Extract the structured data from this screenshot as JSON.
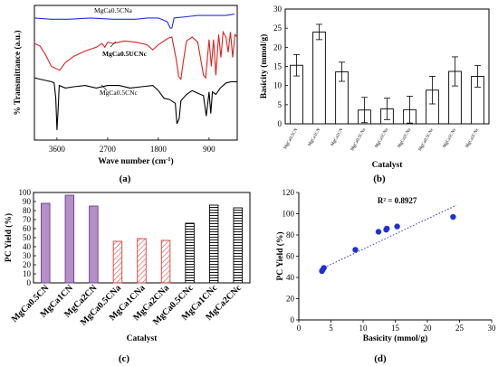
{
  "chart_data": [
    {
      "type": "line",
      "panel": "(a)",
      "xlabel": "Wave number (cm",
      "xlabel_sup": "-1",
      "xlabel_end": ")",
      "ylabel": "% Transmittance (a.u.)",
      "xlim": [
        4000,
        400
      ],
      "xticks": [
        3600,
        2700,
        1800,
        900
      ],
      "series": [
        {
          "name": "MgCa0.5CNa",
          "color": "#2233dd",
          "points": [
            [
              4000,
              93
            ],
            [
              3700,
              92
            ],
            [
              3400,
              92
            ],
            [
              3000,
              93
            ],
            [
              2600,
              92
            ],
            [
              2300,
              92
            ],
            [
              2200,
              92
            ],
            [
              2000,
              93
            ],
            [
              1900,
              93
            ],
            [
              1800,
              93
            ],
            [
              1750,
              92
            ],
            [
              1640,
              90
            ],
            [
              1590,
              85
            ],
            [
              1560,
              85
            ],
            [
              1520,
              93
            ],
            [
              1300,
              94
            ],
            [
              1100,
              95
            ],
            [
              900,
              95
            ],
            [
              600,
              95
            ],
            [
              450,
              96
            ]
          ]
        },
        {
          "name": "MgCa0.5UCNc",
          "color": "#dd2222",
          "points": [
            [
              4000,
              73
            ],
            [
              3900,
              71
            ],
            [
              3800,
              64
            ],
            [
              3700,
              55
            ],
            [
              3550,
              52
            ],
            [
              3450,
              58
            ],
            [
              3300,
              63
            ],
            [
              3100,
              67
            ],
            [
              2900,
              70
            ],
            [
              2800,
              73
            ],
            [
              2750,
              70
            ],
            [
              2700,
              74
            ],
            [
              2600,
              73
            ],
            [
              2500,
              74
            ],
            [
              2400,
              75
            ],
            [
              2200,
              74
            ],
            [
              2000,
              72
            ],
            [
              1900,
              68
            ],
            [
              1800,
              72
            ],
            [
              1700,
              75
            ],
            [
              1630,
              77
            ],
            [
              1560,
              78
            ],
            [
              1480,
              60
            ],
            [
              1440,
              47
            ],
            [
              1400,
              45
            ],
            [
              1360,
              58
            ],
            [
              1300,
              75
            ],
            [
              1200,
              78
            ],
            [
              1100,
              74
            ],
            [
              1000,
              48
            ],
            [
              960,
              46
            ],
            [
              900,
              76
            ],
            [
              860,
              55
            ],
            [
              820,
              76
            ],
            [
              780,
              48
            ],
            [
              730,
              80
            ],
            [
              690,
              62
            ],
            [
              650,
              82
            ],
            [
              600,
              78
            ],
            [
              560,
              66
            ],
            [
              520,
              82
            ],
            [
              480,
              62
            ],
            [
              440,
              80
            ],
            [
              400,
              78
            ]
          ]
        },
        {
          "name": "MgCa0.5CNc",
          "color": "#000000",
          "points": [
            [
              4000,
              46
            ],
            [
              3900,
              45
            ],
            [
              3800,
              44
            ],
            [
              3700,
              43
            ],
            [
              3650,
              42
            ],
            [
              3620,
              30
            ],
            [
              3600,
              5
            ],
            [
              3580,
              20
            ],
            [
              3560,
              40
            ],
            [
              3450,
              38
            ],
            [
              3300,
              39
            ],
            [
              3100,
              40
            ],
            [
              2900,
              38
            ],
            [
              2700,
              40
            ],
            [
              2500,
              40
            ],
            [
              2300,
              38
            ],
            [
              2100,
              39
            ],
            [
              1900,
              40
            ],
            [
              1800,
              36
            ],
            [
              1750,
              33
            ],
            [
              1700,
              30
            ],
            [
              1600,
              29
            ],
            [
              1500,
              26
            ],
            [
              1470,
              10
            ],
            [
              1430,
              14
            ],
            [
              1400,
              28
            ],
            [
              1300,
              33
            ],
            [
              1200,
              36
            ],
            [
              1100,
              34
            ],
            [
              1000,
              32
            ],
            [
              950,
              16
            ],
            [
              900,
              35
            ],
            [
              870,
              18
            ],
            [
              840,
              35
            ],
            [
              780,
              33
            ],
            [
              700,
              38
            ],
            [
              600,
              42
            ],
            [
              500,
              43
            ],
            [
              400,
              43
            ]
          ]
        }
      ]
    },
    {
      "type": "bar",
      "panel": "(b)",
      "xlabel": "Catalyst",
      "ylabel": "Basicity (mmol/g)",
      "ylim": [
        0,
        30
      ],
      "yticks": [
        0,
        5,
        10,
        15,
        20,
        25,
        30
      ],
      "categories": [
        "MgCa0.5CN",
        "MgCa1CN",
        "MgCa2CN",
        "MgCa0.5CNa",
        "MgCa1CNa",
        "MgCa2CNa",
        "MgCa0.5CNc",
        "MgCa1CNc",
        "MgCa2CNc"
      ],
      "values": [
        15.3,
        24.0,
        13.6,
        3.6,
        3.9,
        3.7,
        8.8,
        13.7,
        12.4
      ],
      "errors": [
        2.8,
        2.0,
        2.5,
        3.3,
        2.8,
        3.5,
        3.6,
        3.8,
        2.8
      ]
    },
    {
      "type": "bar",
      "panel": "(c)",
      "xlabel": "Catalyst",
      "ylabel": "PC Yield (%)",
      "ylim": [
        0,
        100
      ],
      "yticks": [
        0,
        10,
        20,
        30,
        40,
        50,
        60,
        70,
        80,
        90,
        100
      ],
      "categories": [
        "MgCa0.5CN",
        "MgCa1CN",
        "MgCa2CN",
        "MgCa0.5CNa",
        "MgCa1CNa",
        "MgCa2CNa",
        "MgCa0.5CNc",
        "MgCa1CNc",
        "MgCa2CNc"
      ],
      "values": [
        88,
        97,
        85,
        46,
        49,
        47,
        66,
        86,
        83
      ],
      "styles": [
        "solid",
        "solid",
        "solid",
        "diag",
        "diag",
        "diag",
        "horiz",
        "horiz",
        "horiz"
      ],
      "colors": {
        "solid": "#b48fc9",
        "solid_edge": "#6a3d8a",
        "diag": "#e23a3a",
        "horiz": "#000000"
      }
    },
    {
      "type": "scatter",
      "panel": "(d)",
      "xlabel": "Basicity (mmol/g)",
      "ylabel": "PC Yield (%)",
      "xlim": [
        0,
        30
      ],
      "ylim": [
        0,
        120
      ],
      "xticks": [
        0,
        5,
        10,
        15,
        20,
        25,
        30
      ],
      "yticks": [
        0,
        20,
        40,
        60,
        80,
        100,
        120
      ],
      "annotation": "R² = 0.8927",
      "points": [
        [
          3.6,
          46
        ],
        [
          3.7,
          47
        ],
        [
          3.9,
          49
        ],
        [
          8.8,
          66
        ],
        [
          12.4,
          83
        ],
        [
          13.6,
          85
        ],
        [
          13.7,
          86
        ],
        [
          15.3,
          88
        ],
        [
          24.0,
          97
        ]
      ],
      "trendline": [
        [
          3.5,
          48
        ],
        [
          24.5,
          108
        ]
      ],
      "point_color": "#1f2fd6"
    }
  ]
}
